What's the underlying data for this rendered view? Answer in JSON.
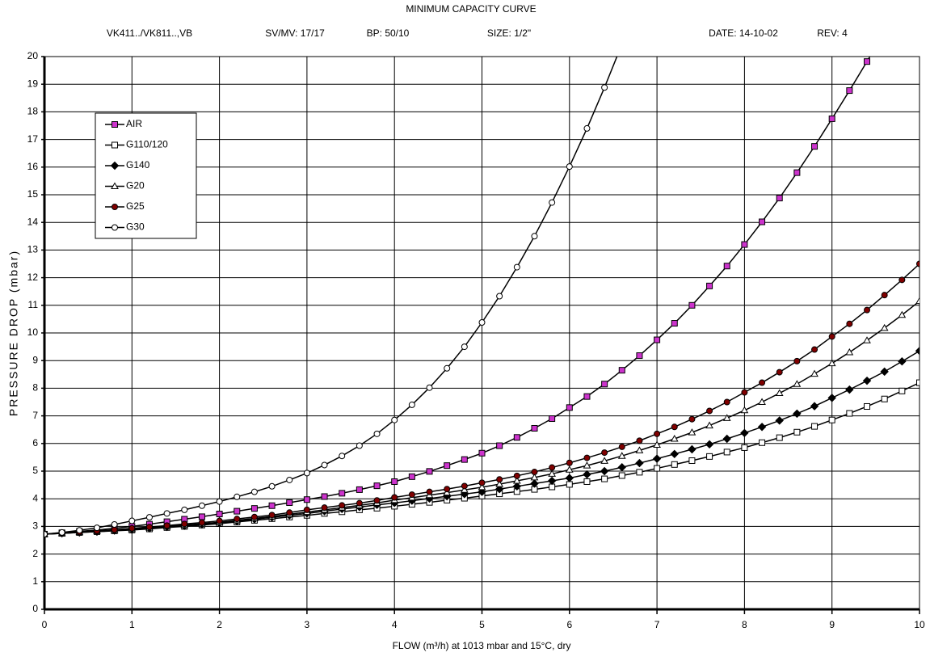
{
  "chart_data": {
    "type": "line",
    "title": "MINIMUM CAPACITY CURVE",
    "subtitle": [
      "VK411../VK811..,VB",
      "SV/MV: 17/17",
      "BP: 50/10",
      "SIZE: 1/2\"",
      "DATE: 14-10-02",
      "REV: 4"
    ],
    "xlabel": "FLOW (m³/h) at 1013 mbar and 15°C, dry",
    "ylabel": "PRESSURE DROP (mbar)",
    "xlim": [
      0,
      10
    ],
    "ylim": [
      0,
      20
    ],
    "xticks": [
      0,
      1,
      2,
      3,
      4,
      5,
      6,
      7,
      8,
      9,
      10
    ],
    "yticks": [
      0,
      1,
      2,
      3,
      4,
      5,
      6,
      7,
      8,
      9,
      10,
      11,
      12,
      13,
      14,
      15,
      16,
      17,
      18,
      19,
      20
    ],
    "grid": true,
    "legend": "upper left",
    "x": [
      0,
      0.2,
      0.4,
      0.6,
      0.8,
      1,
      1.2,
      1.4,
      1.6,
      1.8,
      2,
      2.2,
      2.4,
      2.6,
      2.8,
      3,
      3.2,
      3.4,
      3.6,
      3.8,
      4,
      4.2,
      4.4,
      4.6,
      4.8,
      5,
      5.2,
      5.4,
      5.6,
      5.8,
      6,
      6.2,
      6.4,
      6.6,
      6.8,
      7,
      7.2,
      7.4,
      7.6,
      7.8,
      8,
      8.2,
      8.4,
      8.6,
      8.8,
      9,
      9.2,
      9.4,
      9.6,
      9.8,
      10
    ],
    "series": [
      {
        "name": "AIR",
        "color": "#000000",
        "marker": "square",
        "fill": "#cc33cc",
        "values": [
          2.72,
          2.77,
          2.82,
          2.87,
          2.93,
          3.0,
          3.08,
          3.17,
          3.26,
          3.35,
          3.45,
          3.55,
          3.65,
          3.75,
          3.86,
          3.97,
          4.08,
          4.2,
          4.33,
          4.47,
          4.62,
          4.8,
          4.99,
          5.2,
          5.42,
          5.65,
          5.92,
          6.22,
          6.55,
          6.9,
          7.3,
          7.7,
          8.15,
          8.65,
          9.18,
          9.75,
          10.35,
          11.0,
          11.7,
          12.42,
          13.2,
          14.02,
          14.88,
          15.8,
          16.75,
          17.75,
          18.77,
          19.82,
          20.9,
          null,
          null
        ]
      },
      {
        "name": "G110/120",
        "color": "#000000",
        "marker": "square",
        "fill": "#ffffff",
        "values": [
          2.72,
          2.75,
          2.78,
          2.81,
          2.84,
          2.87,
          2.91,
          2.96,
          3.0,
          3.05,
          3.1,
          3.16,
          3.22,
          3.28,
          3.34,
          3.4,
          3.47,
          3.53,
          3.6,
          3.66,
          3.73,
          3.8,
          3.87,
          3.95,
          4.02,
          4.1,
          4.18,
          4.26,
          4.34,
          4.43,
          4.52,
          4.62,
          4.72,
          4.84,
          4.96,
          5.1,
          5.24,
          5.38,
          5.53,
          5.69,
          5.85,
          6.03,
          6.21,
          6.41,
          6.62,
          6.85,
          7.09,
          7.34,
          7.61,
          7.9,
          8.2
        ]
      },
      {
        "name": "G140",
        "color": "#000000",
        "marker": "diamond",
        "fill": "#000000",
        "values": [
          2.72,
          2.75,
          2.78,
          2.81,
          2.85,
          2.88,
          2.93,
          2.98,
          3.02,
          3.07,
          3.12,
          3.19,
          3.26,
          3.33,
          3.4,
          3.47,
          3.55,
          3.63,
          3.7,
          3.78,
          3.85,
          3.93,
          4.01,
          4.09,
          4.17,
          4.25,
          4.35,
          4.45,
          4.55,
          4.65,
          4.75,
          4.88,
          5.0,
          5.14,
          5.29,
          5.45,
          5.62,
          5.79,
          5.97,
          6.17,
          6.38,
          6.6,
          6.83,
          7.08,
          7.35,
          7.65,
          7.95,
          8.27,
          8.6,
          8.97,
          9.35
        ]
      },
      {
        "name": "G20",
        "color": "#000000",
        "marker": "triangle",
        "fill": "#ffffff",
        "values": [
          2.72,
          2.75,
          2.79,
          2.83,
          2.86,
          2.9,
          2.95,
          3.0,
          3.05,
          3.1,
          3.15,
          3.22,
          3.29,
          3.36,
          3.44,
          3.52,
          3.6,
          3.68,
          3.76,
          3.85,
          3.95,
          4.04,
          4.13,
          4.22,
          4.32,
          4.42,
          4.53,
          4.65,
          4.77,
          4.9,
          5.05,
          5.2,
          5.37,
          5.55,
          5.75,
          5.95,
          6.17,
          6.4,
          6.65,
          6.92,
          7.2,
          7.5,
          7.82,
          8.15,
          8.52,
          8.9,
          9.3,
          9.73,
          10.18,
          10.65,
          11.15
        ]
      },
      {
        "name": "G25",
        "color": "#000000",
        "marker": "circle",
        "fill": "#800000",
        "values": [
          2.72,
          2.76,
          2.8,
          2.84,
          2.88,
          2.93,
          2.98,
          3.03,
          3.09,
          3.14,
          3.2,
          3.27,
          3.34,
          3.41,
          3.5,
          3.6,
          3.68,
          3.76,
          3.84,
          3.94,
          4.05,
          4.15,
          4.25,
          4.35,
          4.46,
          4.58,
          4.7,
          4.83,
          4.97,
          5.13,
          5.3,
          5.48,
          5.67,
          5.88,
          6.1,
          6.35,
          6.6,
          6.88,
          7.18,
          7.5,
          7.85,
          8.2,
          8.58,
          8.98,
          9.4,
          9.87,
          10.33,
          10.83,
          11.37,
          11.92,
          12.5
        ]
      },
      {
        "name": "G30",
        "color": "#000000",
        "marker": "circle",
        "fill": "#ffffff",
        "values": [
          2.72,
          2.78,
          2.86,
          2.95,
          3.07,
          3.2,
          3.33,
          3.47,
          3.6,
          3.75,
          3.9,
          4.07,
          4.25,
          4.45,
          4.68,
          4.93,
          5.22,
          5.55,
          5.92,
          6.35,
          6.85,
          7.4,
          8.02,
          8.72,
          9.5,
          10.38,
          11.33,
          12.38,
          13.5,
          14.72,
          16.02,
          17.4,
          18.88,
          20.45,
          null,
          null,
          null,
          null,
          null,
          null,
          null,
          null,
          null,
          null,
          null,
          null,
          null,
          null,
          null,
          null,
          null
        ]
      }
    ]
  }
}
